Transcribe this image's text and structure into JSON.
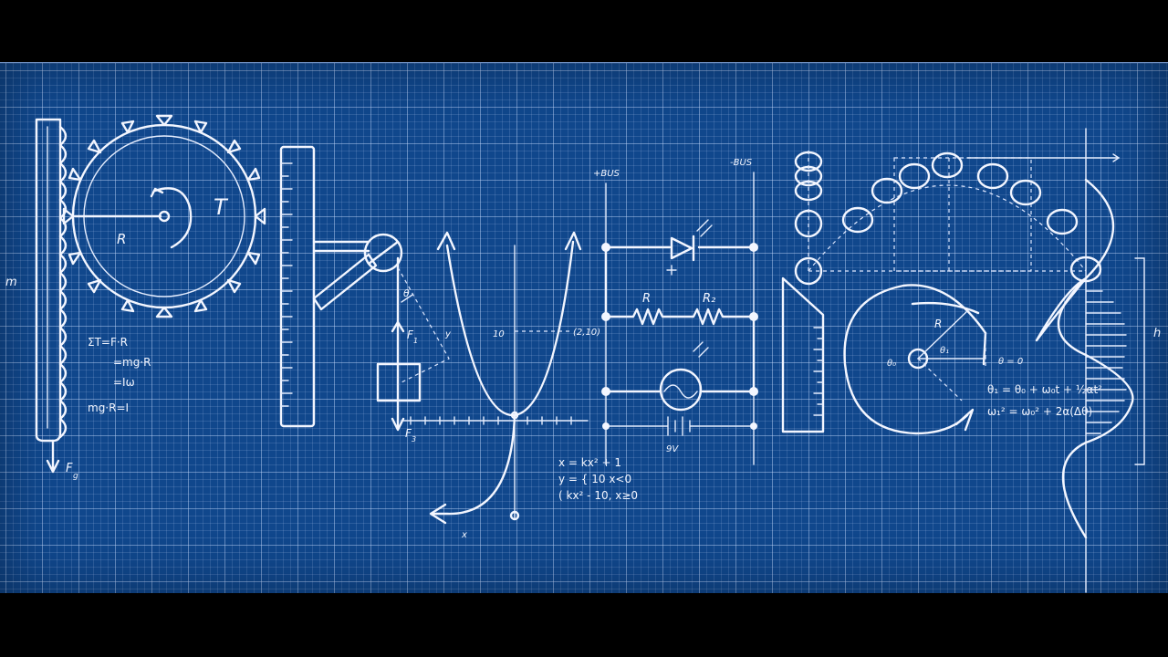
{
  "labels": {
    "torque": "T",
    "radius": "R",
    "mass_side": "m",
    "force_g": "F",
    "force_g_sub": "g",
    "eq1": "ΣT=F·R",
    "eq2": "=mg·R",
    "eq3": "=Iω",
    "eq4": "mg·R=I",
    "force1": "F",
    "force1_sub": "1",
    "force3": "F",
    "force3_sub": "3",
    "theta": "θ",
    "y_label": "y",
    "x_label": "x",
    "val_10": "10",
    "point": "(2,10)",
    "piece1": "x = kx² + 1",
    "piece2": "y = { 10 x<0",
    "piece3": "  ( kx² - 10, x≥0",
    "bus_plus": "+BUS",
    "bus_minus": "-BUS",
    "res1": "R",
    "res2": "R₂",
    "battery": "9V",
    "circle_r": "R",
    "theta_0": "θ₀",
    "theta_1": "θ₁",
    "theta_eq": "θ = 0",
    "eq_omega1": "θ₁ = θ₀ + ω₀t + ½αt²",
    "eq_omega2": "ω₁² = ω₀² + 2α(Δθ)",
    "h_label": "h"
  },
  "colors": {
    "blueprint": "#10478c",
    "chalk": "#f3f6ff",
    "letterbox": "#000000"
  }
}
